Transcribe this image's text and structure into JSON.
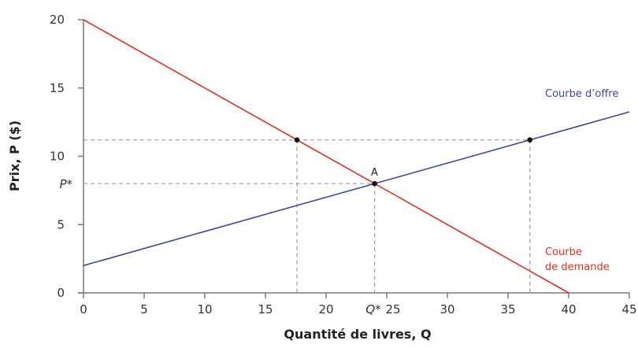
{
  "chart_data": {
    "type": "line",
    "title": "",
    "xlabel": "Quantité de livres, Q",
    "ylabel": "Prix, P ($)",
    "xlim": [
      0,
      45
    ],
    "ylim": [
      0,
      20
    ],
    "x_ticks": [
      "0",
      "5",
      "10",
      "15",
      "20",
      "25",
      "30",
      "35",
      "40",
      "45"
    ],
    "y_ticks": [
      "0",
      "5",
      "10",
      "15",
      "20"
    ],
    "grid": false,
    "series": [
      {
        "name": "Courbe d’offre",
        "color": "#3f48a0",
        "points": [
          [
            0,
            2
          ],
          [
            45,
            13.25
          ]
        ]
      },
      {
        "name": "Courbe de demande",
        "color": "#e0301e",
        "points": [
          [
            0,
            20
          ],
          [
            40,
            0
          ]
        ]
      }
    ],
    "annotations": {
      "equilibrium": {
        "label": "A",
        "q": 24,
        "p": 8,
        "q_label": "Q*",
        "p_label": "P*"
      },
      "points": [
        {
          "q": 17.6,
          "p": 11.2
        },
        {
          "q": 36.8,
          "p": 11.2
        }
      ],
      "dashed_price_level": 11.2
    }
  },
  "labels": {
    "supply": "Courbe d’offre",
    "demand_line1": "Courbe",
    "demand_line2": "de demande",
    "point_a": "A",
    "q_star": "Q*",
    "p_star": "P*",
    "x_axis_title": "Quantité de livres, Q",
    "y_axis_title": "Prix, P ($)"
  }
}
